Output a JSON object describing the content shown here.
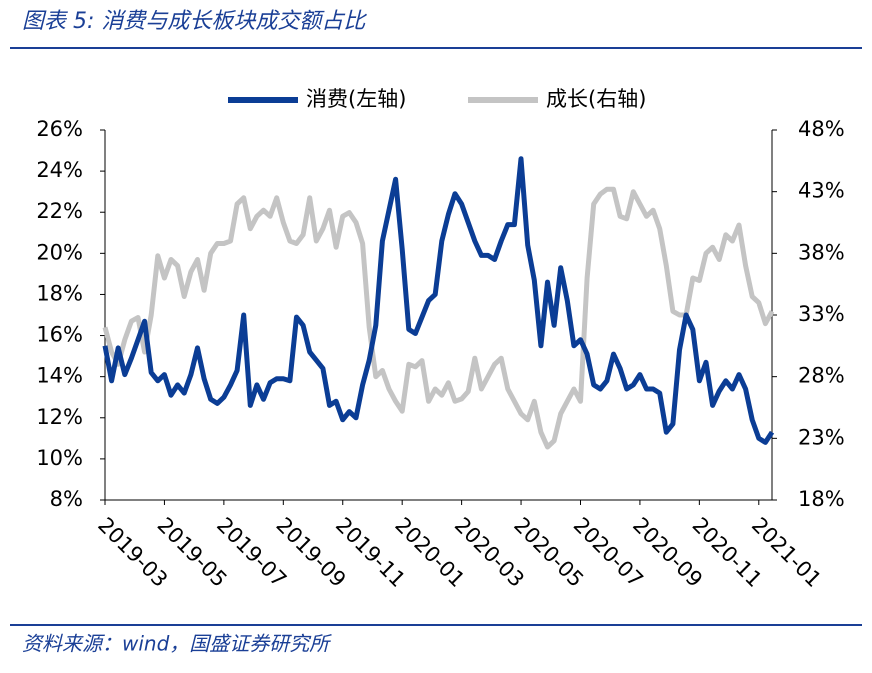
{
  "chart_data": {
    "type": "line",
    "title": "图表 5:  消费与成长板块成交额占比",
    "source": "资料来源：wind，国盛证券研究所",
    "categories": [
      "2019-03",
      null,
      null,
      null,
      null,
      null,
      null,
      null,
      null,
      "2019-05",
      null,
      null,
      null,
      null,
      null,
      null,
      null,
      null,
      "2019-07",
      null,
      null,
      null,
      null,
      null,
      null,
      null,
      null,
      "2019-09",
      null,
      null,
      null,
      null,
      null,
      null,
      null,
      null,
      "2019-11",
      null,
      null,
      null,
      null,
      null,
      null,
      null,
      null,
      "2020-01",
      null,
      null,
      null,
      null,
      null,
      null,
      null,
      null,
      "2020-03",
      null,
      null,
      null,
      null,
      null,
      null,
      null,
      null,
      "2020-05",
      null,
      null,
      null,
      null,
      null,
      null,
      null,
      null,
      "2020-07",
      null,
      null,
      null,
      null,
      null,
      null,
      null,
      null,
      "2020-09",
      null,
      null,
      null,
      null,
      null,
      null,
      null,
      null,
      "2020-11",
      null,
      null,
      null,
      null,
      null,
      null,
      null,
      null,
      "2021-01",
      null,
      null
    ],
    "series": [
      {
        "name": "消费(左轴)",
        "color": "#0b3d95",
        "values": [
          15.5,
          13.8,
          15.4,
          14.1,
          14.9,
          15.8,
          16.7,
          14.2,
          13.8,
          14.1,
          13.1,
          13.6,
          13.2,
          14.1,
          15.4,
          13.9,
          12.9,
          12.7,
          13.0,
          13.6,
          14.3,
          17.0,
          12.6,
          13.6,
          12.9,
          13.7,
          13.9,
          13.9,
          13.8,
          16.9,
          16.5,
          15.2,
          14.8,
          14.4,
          12.6,
          12.8,
          11.9,
          12.3,
          12.0,
          13.6,
          14.8,
          16.5,
          20.6,
          22.1,
          23.6,
          20.2,
          16.3,
          16.1,
          16.9,
          17.7,
          18.0,
          20.6,
          21.9,
          22.9,
          22.4,
          21.5,
          20.6,
          19.9,
          19.9,
          19.7,
          20.6,
          21.4,
          21.4,
          24.6,
          20.4,
          18.7,
          15.5,
          18.6,
          16.5,
          19.3,
          17.7,
          15.5,
          15.8,
          15.1,
          13.6,
          13.4,
          13.8,
          15.1,
          14.4,
          13.4,
          13.6,
          14.1,
          13.4,
          13.4,
          13.2,
          11.3,
          11.7,
          15.3,
          17.0,
          16.3,
          13.8,
          14.7,
          12.6,
          13.3,
          13.8,
          13.4,
          14.1,
          13.4,
          11.9,
          11.0,
          10.8,
          11.3
        ]
      },
      {
        "name": "成长(右轴)",
        "color": "#c4c4c4",
        "axis": "y2",
        "values": [
          32.0,
          30.0,
          29.0,
          31.0,
          32.5,
          32.8,
          30.0,
          33.0,
          37.8,
          36.0,
          37.5,
          37.0,
          34.5,
          36.5,
          37.5,
          35.0,
          38.0,
          38.8,
          38.8,
          39.0,
          42.0,
          42.5,
          40.0,
          41.0,
          41.5,
          41.0,
          42.5,
          40.5,
          39.0,
          38.8,
          39.5,
          42.5,
          39.0,
          40.0,
          41.5,
          38.5,
          41.0,
          41.3,
          40.5,
          38.8,
          32.0,
          28.0,
          28.5,
          27.0,
          26.0,
          25.2,
          29.0,
          28.8,
          29.3,
          26.0,
          27.0,
          26.5,
          27.5,
          26.0,
          26.2,
          26.8,
          29.5,
          27.0,
          28.0,
          29.0,
          29.5,
          27.0,
          26.0,
          25.0,
          24.5,
          26.0,
          23.5,
          22.3,
          22.8,
          25.0,
          26.0,
          27.0,
          26.0,
          36.0,
          42.0,
          42.8,
          43.2,
          43.2,
          41.0,
          40.8,
          43.0,
          42.0,
          41.0,
          41.5,
          40.0,
          37.0,
          33.3,
          33.0,
          33.0,
          36.0,
          35.8,
          38.0,
          38.5,
          37.5,
          39.5,
          39.0,
          40.3,
          37.0,
          34.5,
          34.0,
          32.3,
          33.3
        ]
      }
    ],
    "ylim": [
      8,
      26
    ],
    "yticks": [
      {
        "value": 8,
        "label": "8%"
      },
      {
        "value": 10,
        "label": "10%"
      },
      {
        "value": 12,
        "label": "12%"
      },
      {
        "value": 14,
        "label": "14%"
      },
      {
        "value": 16,
        "label": "16%"
      },
      {
        "value": 18,
        "label": "18%"
      },
      {
        "value": 20,
        "label": "20%"
      },
      {
        "value": 22,
        "label": "22%"
      },
      {
        "value": 24,
        "label": "24%"
      },
      {
        "value": 26,
        "label": "26%"
      }
    ],
    "y2lim": [
      18,
      48
    ],
    "y2ticks": [
      {
        "value": 18,
        "label": "18%"
      },
      {
        "value": 23,
        "label": "23%"
      },
      {
        "value": 28,
        "label": "28%"
      },
      {
        "value": 33,
        "label": "33%"
      },
      {
        "value": 38,
        "label": "38%"
      },
      {
        "value": 43,
        "label": "43%"
      },
      {
        "value": 48,
        "label": "48%"
      }
    ],
    "legend": "top"
  }
}
